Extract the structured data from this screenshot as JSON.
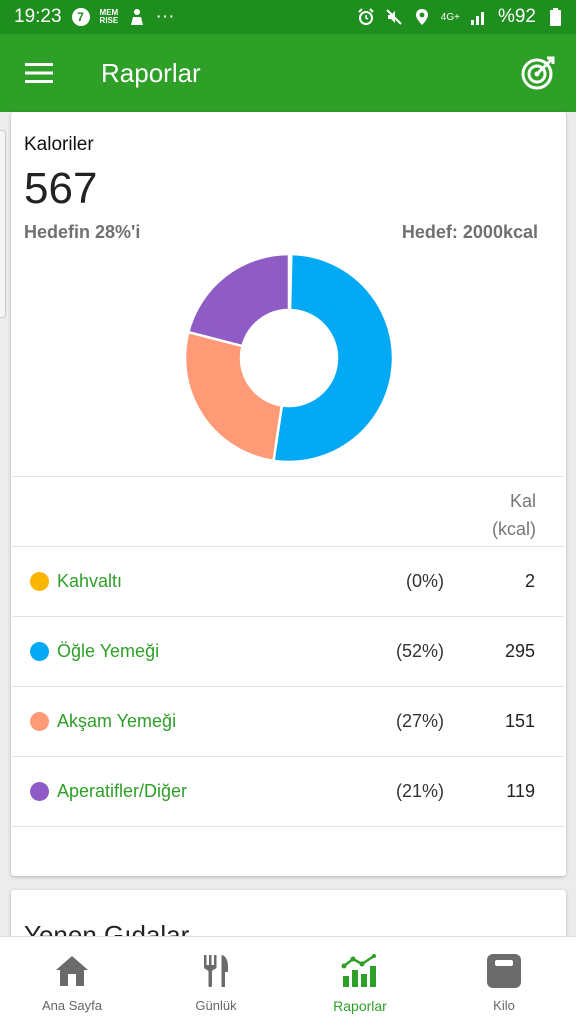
{
  "status_bar": {
    "time": "19:23",
    "badge": "7",
    "memrise_top": "MEM",
    "memrise_bottom": "RISE",
    "dots": "···",
    "network": "4G+",
    "battery": "%92"
  },
  "app_bar": {
    "title": "Raporlar"
  },
  "calories": {
    "label": "Kaloriler",
    "value": "567",
    "goal_percent_text": "Hedefin 28%'i",
    "goal_text": "Hedef: 2000kcal"
  },
  "table": {
    "header_line1": "Kal",
    "header_line2": "(kcal)",
    "rows": [
      {
        "meal": "Kahvaltı",
        "percent": "(0%)",
        "kcal": "2"
      },
      {
        "meal": "Öğle Yemeği",
        "percent": "(52%)",
        "kcal": "295"
      },
      {
        "meal": "Akşam Yemeği",
        "percent": "(27%)",
        "kcal": "151"
      },
      {
        "meal": "Aperatifler/Diğer",
        "percent": "(21%)",
        "kcal": "119"
      }
    ]
  },
  "chart_data": {
    "type": "pie",
    "donut": true,
    "categories": [
      "Kahvaltı",
      "Öğle Yemeği",
      "Akşam Yemeği",
      "Aperatifler/Diğer"
    ],
    "values": [
      2,
      295,
      151,
      119
    ],
    "colors": [
      "#f9b500",
      "#03a9f4",
      "#ff9a76",
      "#8e5cc4"
    ]
  },
  "colors": {
    "primary": "#2e9f27",
    "status_bar": "#1e8e1e"
  },
  "section2": {
    "title": "Yenen Gıdalar"
  },
  "bottom_nav": {
    "items": [
      {
        "label": "Ana Sayfa",
        "icon": "home-icon"
      },
      {
        "label": "Günlük",
        "icon": "fork-knife-icon"
      },
      {
        "label": "Raporlar",
        "icon": "chart-icon"
      },
      {
        "label": "Kilo",
        "icon": "scale-icon"
      }
    ],
    "active_index": 2
  }
}
